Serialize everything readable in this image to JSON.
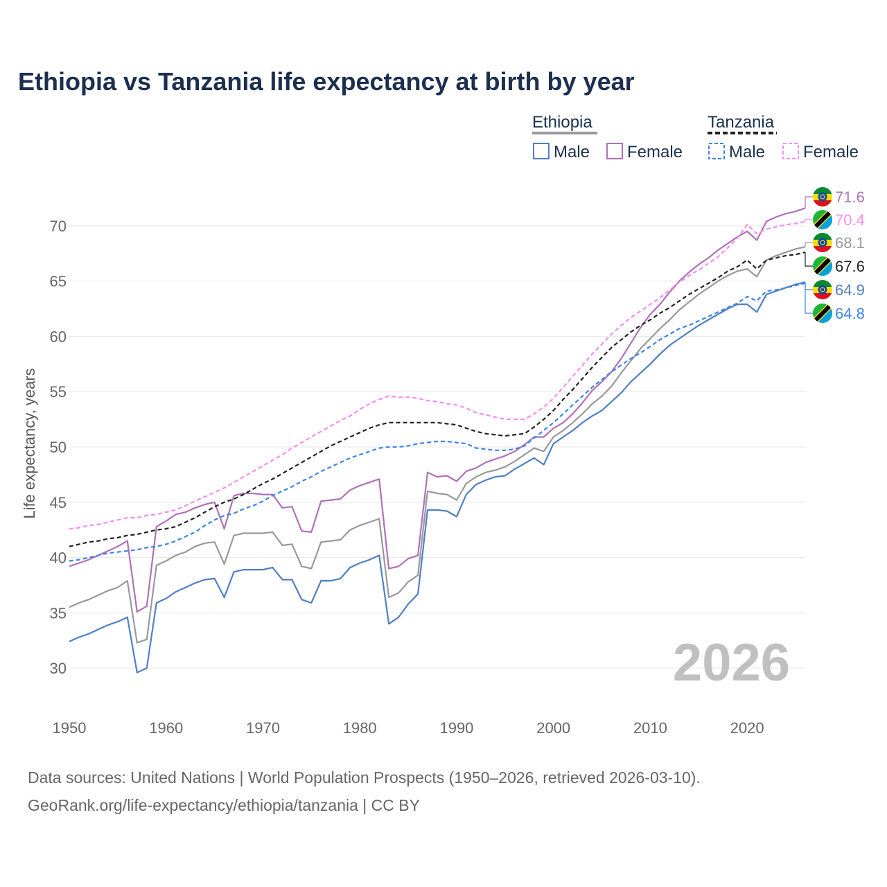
{
  "chart_data": {
    "type": "line",
    "title": "Ethiopia vs Tanzania life expectancy at birth by year",
    "xlabel": "",
    "ylabel": "Life expectancy, years",
    "xlim": [
      1950,
      2026
    ],
    "ylim": [
      26.5,
      74
    ],
    "x_ticks": [
      1950,
      1960,
      1970,
      1980,
      1990,
      2000,
      2010,
      2020
    ],
    "y_ticks": [
      30,
      35,
      40,
      45,
      50,
      55,
      60,
      65,
      70
    ],
    "legend": {
      "groups": [
        {
          "country": "Ethiopia",
          "items": [
            "Male",
            "Female"
          ]
        },
        {
          "country": "Tanzania",
          "items": [
            "Male",
            "Female"
          ]
        }
      ]
    },
    "watermark_year": "2026",
    "x": [
      1950,
      1951,
      1952,
      1953,
      1954,
      1955,
      1956,
      1957,
      1958,
      1959,
      1960,
      1961,
      1962,
      1963,
      1964,
      1965,
      1966,
      1967,
      1968,
      1969,
      1970,
      1971,
      1972,
      1973,
      1974,
      1975,
      1976,
      1977,
      1978,
      1979,
      1980,
      1981,
      1982,
      1983,
      1984,
      1985,
      1986,
      1987,
      1988,
      1989,
      1990,
      1991,
      1992,
      1993,
      1994,
      1995,
      1996,
      1997,
      1998,
      1999,
      2000,
      2001,
      2002,
      2003,
      2004,
      2005,
      2006,
      2007,
      2008,
      2009,
      2010,
      2011,
      2012,
      2013,
      2014,
      2015,
      2016,
      2017,
      2018,
      2019,
      2020,
      2021,
      2022,
      2023,
      2024,
      2025,
      2026
    ],
    "series": [
      {
        "name": "Ethiopia Female",
        "country": "Ethiopia",
        "sex": "Female",
        "color": "#b070b8",
        "dashed": false,
        "end_label": "71.6",
        "values": [
          39.2,
          39.5,
          39.8,
          40.2,
          40.6,
          41.0,
          41.5,
          35.1,
          35.6,
          42.8,
          43.3,
          43.9,
          44.1,
          44.5,
          44.8,
          45.0,
          42.6,
          45.6,
          45.8,
          45.8,
          45.7,
          45.7,
          44.5,
          44.6,
          42.4,
          42.3,
          45.1,
          45.2,
          45.3,
          46.1,
          46.5,
          46.8,
          47.1,
          39.0,
          39.2,
          39.9,
          40.2,
          47.7,
          47.3,
          47.4,
          46.9,
          47.8,
          48.1,
          48.6,
          48.9,
          49.2,
          49.6,
          50.2,
          50.9,
          50.9,
          51.7,
          52.2,
          53.0,
          54.0,
          55.1,
          55.9,
          56.8,
          58.0,
          59.4,
          60.8,
          62.0,
          62.9,
          64.0,
          65.0,
          65.8,
          66.5,
          67.1,
          67.8,
          68.4,
          69.0,
          69.5,
          68.7,
          70.4,
          70.8,
          71.1,
          71.3,
          71.6
        ]
      },
      {
        "name": "Tanzania Female",
        "country": "Tanzania",
        "sex": "Female",
        "color": "#f78cf0",
        "dashed": true,
        "end_label": "70.4",
        "values": [
          42.6,
          42.7,
          42.9,
          43.0,
          43.2,
          43.4,
          43.6,
          43.6,
          43.8,
          43.9,
          44.1,
          44.3,
          44.7,
          45.1,
          45.5,
          45.9,
          46.3,
          46.8,
          47.3,
          47.8,
          48.3,
          48.8,
          49.3,
          49.9,
          50.4,
          50.9,
          51.4,
          51.9,
          52.4,
          52.8,
          53.4,
          53.9,
          54.3,
          54.6,
          54.5,
          54.5,
          54.4,
          54.2,
          54.1,
          53.9,
          53.8,
          53.5,
          53.1,
          52.9,
          52.7,
          52.5,
          52.5,
          52.5,
          53.0,
          53.6,
          54.4,
          55.4,
          56.4,
          57.4,
          58.4,
          59.3,
          60.2,
          61.0,
          61.7,
          62.3,
          62.9,
          63.5,
          64.2,
          64.9,
          65.5,
          66.0,
          66.6,
          67.2,
          68.0,
          68.9,
          70.1,
          69.3,
          69.7,
          69.9,
          70.1,
          70.2,
          70.4
        ]
      },
      {
        "name": "Ethiopia Both",
        "country": "Ethiopia",
        "sex": "Both",
        "color": "#999999",
        "dashed": false,
        "end_label": "68.1",
        "values": [
          35.5,
          35.9,
          36.2,
          36.6,
          37.0,
          37.3,
          37.9,
          32.3,
          32.6,
          39.3,
          39.7,
          40.2,
          40.5,
          41.0,
          41.3,
          41.4,
          39.4,
          42.0,
          42.2,
          42.2,
          42.2,
          42.3,
          41.1,
          41.2,
          39.2,
          39.0,
          41.4,
          41.5,
          41.6,
          42.5,
          42.9,
          43.2,
          43.5,
          36.4,
          36.8,
          37.8,
          38.4,
          46.0,
          45.8,
          45.7,
          45.2,
          46.7,
          47.3,
          47.7,
          47.9,
          48.2,
          48.7,
          49.3,
          49.9,
          49.6,
          50.9,
          51.5,
          52.2,
          53.0,
          53.9,
          54.6,
          55.5,
          56.7,
          57.8,
          58.9,
          59.8,
          60.7,
          61.5,
          62.4,
          63.1,
          63.8,
          64.4,
          65.0,
          65.5,
          65.9,
          66.1,
          65.4,
          66.9,
          67.3,
          67.6,
          67.9,
          68.1
        ]
      },
      {
        "name": "Tanzania Both",
        "country": "Tanzania",
        "sex": "Both",
        "color": "#222222",
        "dashed": true,
        "end_label": "67.6",
        "values": [
          41.0,
          41.2,
          41.4,
          41.5,
          41.7,
          41.8,
          42.0,
          42.1,
          42.3,
          42.5,
          42.6,
          42.8,
          43.2,
          43.6,
          44.1,
          44.6,
          45.0,
          45.3,
          45.7,
          46.2,
          46.7,
          47.1,
          47.6,
          48.1,
          48.6,
          49.1,
          49.6,
          50.1,
          50.5,
          50.9,
          51.3,
          51.7,
          52.0,
          52.2,
          52.2,
          52.2,
          52.2,
          52.2,
          52.2,
          52.1,
          52.0,
          51.7,
          51.4,
          51.2,
          51.1,
          51.0,
          51.1,
          51.2,
          51.8,
          52.5,
          53.3,
          54.3,
          55.2,
          56.2,
          57.2,
          58.1,
          59.0,
          59.7,
          60.4,
          61.0,
          61.5,
          62.1,
          62.6,
          63.2,
          63.8,
          64.3,
          64.8,
          65.3,
          65.9,
          66.3,
          66.9,
          66.1,
          66.9,
          67.1,
          67.3,
          67.4,
          67.6
        ]
      },
      {
        "name": "Ethiopia Male",
        "country": "Ethiopia",
        "sex": "Male",
        "color": "#4f7ec7",
        "dashed": false,
        "end_label": "64.9",
        "values": [
          32.4,
          32.8,
          33.1,
          33.5,
          33.9,
          34.2,
          34.6,
          29.6,
          30.0,
          35.9,
          36.3,
          36.9,
          37.3,
          37.7,
          38.0,
          38.1,
          36.4,
          38.7,
          38.9,
          38.9,
          38.9,
          39.1,
          38.0,
          38.0,
          36.2,
          35.9,
          37.9,
          37.9,
          38.1,
          39.1,
          39.5,
          39.8,
          40.2,
          34.0,
          34.6,
          35.8,
          36.7,
          44.3,
          44.3,
          44.2,
          43.7,
          45.7,
          46.6,
          47.0,
          47.3,
          47.4,
          48.0,
          48.5,
          49.0,
          48.4,
          50.3,
          50.9,
          51.5,
          52.2,
          52.8,
          53.3,
          54.1,
          54.9,
          55.9,
          56.7,
          57.5,
          58.4,
          59.2,
          59.8,
          60.4,
          61.0,
          61.5,
          62.0,
          62.5,
          62.9,
          62.9,
          62.2,
          63.8,
          64.1,
          64.4,
          64.7,
          64.9
        ]
      },
      {
        "name": "Tanzania Male",
        "country": "Tanzania",
        "sex": "Male",
        "color": "#3a86ea",
        "dashed": true,
        "end_label": "64.8",
        "values": [
          39.7,
          39.8,
          40.0,
          40.2,
          40.4,
          40.5,
          40.6,
          40.7,
          40.9,
          41.0,
          41.2,
          41.5,
          41.9,
          42.3,
          42.9,
          43.4,
          43.8,
          44.0,
          44.4,
          44.7,
          45.1,
          45.6,
          46.0,
          46.4,
          46.9,
          47.3,
          47.8,
          48.2,
          48.6,
          49.0,
          49.3,
          49.6,
          49.9,
          50.0,
          50.0,
          50.1,
          50.3,
          50.4,
          50.5,
          50.5,
          50.4,
          50.3,
          49.9,
          49.8,
          49.7,
          49.7,
          49.8,
          50.1,
          50.8,
          51.5,
          52.2,
          53.0,
          53.8,
          54.6,
          55.4,
          56.1,
          56.8,
          57.4,
          58.0,
          58.5,
          59.1,
          59.7,
          60.2,
          60.7,
          61.0,
          61.4,
          61.8,
          62.2,
          62.6,
          63.0,
          63.6,
          63.2,
          64.1,
          64.2,
          64.4,
          64.6,
          64.8
        ]
      }
    ]
  },
  "source": {
    "line1": "Data sources: United Nations | World Population Prospects (1950–2026, retrieved 2026-03-10).",
    "line2": "GeoRank.org/life-expectancy/ethiopia/tanzania | CC BY"
  }
}
